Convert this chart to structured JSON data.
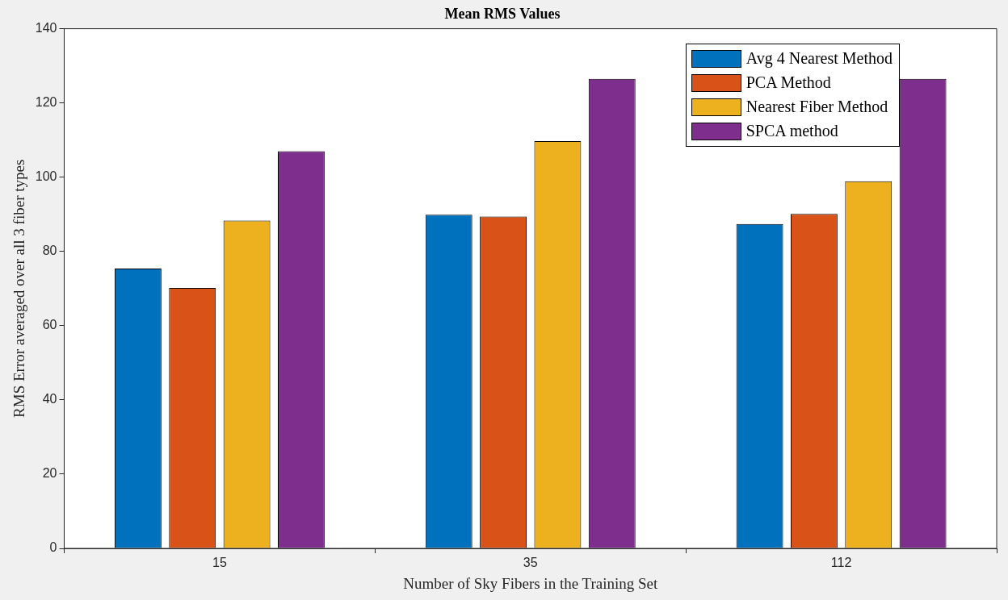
{
  "chart_data": {
    "type": "bar",
    "title": "Mean RMS Values",
    "xlabel": "Number of Sky Fibers in the Training Set",
    "ylabel": "RMS Error averaged over all 3 fiber types",
    "categories": [
      "15",
      "35",
      "112"
    ],
    "series": [
      {
        "name": "Avg 4 Nearest Method",
        "color": "#0072bd",
        "values": [
          75.4,
          89.9,
          87.4
        ]
      },
      {
        "name": "PCA Method",
        "color": "#d95319",
        "values": [
          70.2,
          89.4,
          90.1
        ]
      },
      {
        "name": "Nearest Fiber Method",
        "color": "#edb120",
        "values": [
          88.3,
          109.7,
          98.9
        ]
      },
      {
        "name": "SPCA method",
        "color": "#7e2f8e",
        "values": [
          107.0,
          126.5,
          126.5
        ]
      }
    ],
    "ylim": [
      0,
      140
    ],
    "yticks": [
      0,
      20,
      40,
      60,
      80,
      100,
      120,
      140
    ],
    "grid": false,
    "legend": "top right"
  }
}
